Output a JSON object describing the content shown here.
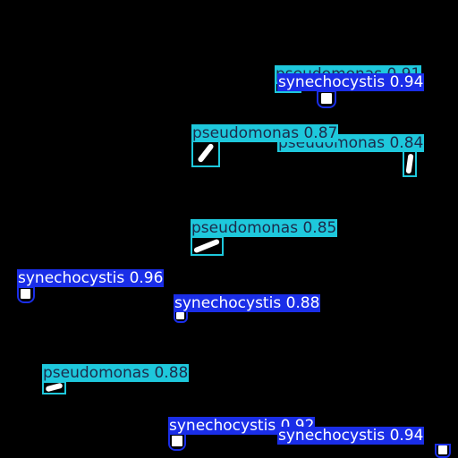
{
  "colors": {
    "background": "#000000",
    "pseudomonas": "#1ec8dc",
    "synechocystis": "#1a2ee8"
  },
  "detections": [
    {
      "id": "d1",
      "class": "pseudomonas",
      "label": "pseudomonas 0.91",
      "shape": "dot"
    },
    {
      "id": "d2",
      "class": "synechocystis",
      "label": "synechocystis 0.94",
      "shape": "square"
    },
    {
      "id": "d3",
      "class": "pseudomonas",
      "label": "pseudomonas 0.87",
      "shape": "rod"
    },
    {
      "id": "d4",
      "class": "pseudomonas",
      "label": "pseudomonas 0.84",
      "shape": "rod"
    },
    {
      "id": "d5",
      "class": "pseudomonas",
      "label": "pseudomonas 0.85",
      "shape": "rod"
    },
    {
      "id": "d6",
      "class": "synechocystis",
      "label": "synechocystis 0.96",
      "shape": "square"
    },
    {
      "id": "d7",
      "class": "synechocystis",
      "label": "synechocystis 0.88",
      "shape": "square"
    },
    {
      "id": "d8",
      "class": "pseudomonas",
      "label": "pseudomonas 0.88",
      "shape": "rod"
    },
    {
      "id": "d9",
      "class": "synechocystis",
      "label": "synechocystis 0.92",
      "shape": "square"
    },
    {
      "id": "d10",
      "class": "synechocystis",
      "label": "synechocystis 0.94",
      "shape": "square"
    }
  ]
}
